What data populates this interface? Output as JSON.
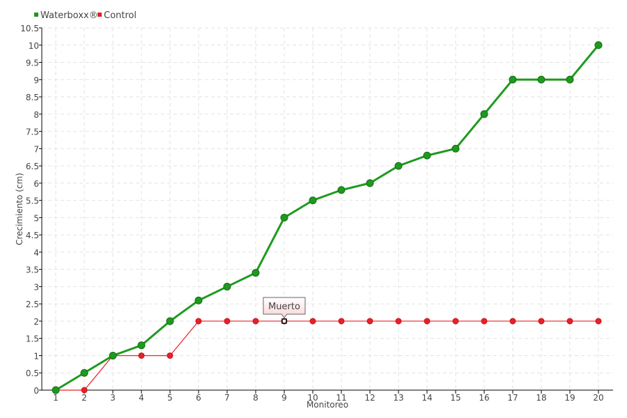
{
  "chart_data": {
    "type": "line",
    "xlabel": "Monitoreo",
    "ylabel": "Crecimiento (cm)",
    "categories": [
      "1",
      "2",
      "3",
      "4",
      "5",
      "6",
      "7",
      "8",
      "9",
      "10",
      "11",
      "12",
      "13",
      "14",
      "15",
      "16",
      "17",
      "18",
      "19",
      "20"
    ],
    "ylim": [
      0,
      10.5
    ],
    "yticks": [
      "0",
      "0.5",
      "1",
      "1.5",
      "2",
      "2.5",
      "3",
      "3.5",
      "4",
      "4.5",
      "5",
      "5.5",
      "6",
      "6.5",
      "7",
      "7.5",
      "8",
      "8.5",
      "9",
      "9.5",
      "10",
      "10.5"
    ],
    "grid": true,
    "legend": "top-left",
    "series": [
      {
        "name": "Waterboxx®",
        "color": "#1e9a1e",
        "values": [
          0,
          0.5,
          1,
          1.3,
          2,
          2.6,
          3,
          3.4,
          5,
          5.5,
          5.8,
          6,
          6.5,
          6.8,
          7,
          8,
          9,
          9,
          9,
          10
        ]
      },
      {
        "name": "Control",
        "color": "#e8202a",
        "values": [
          0,
          0,
          1,
          1,
          1,
          2,
          2,
          2,
          2,
          2,
          2,
          2,
          2,
          2,
          2,
          2,
          2,
          2,
          2,
          2
        ]
      }
    ],
    "annotations": [
      {
        "text": "Muerto",
        "series": "Control",
        "x": "9",
        "y": 2
      }
    ]
  }
}
